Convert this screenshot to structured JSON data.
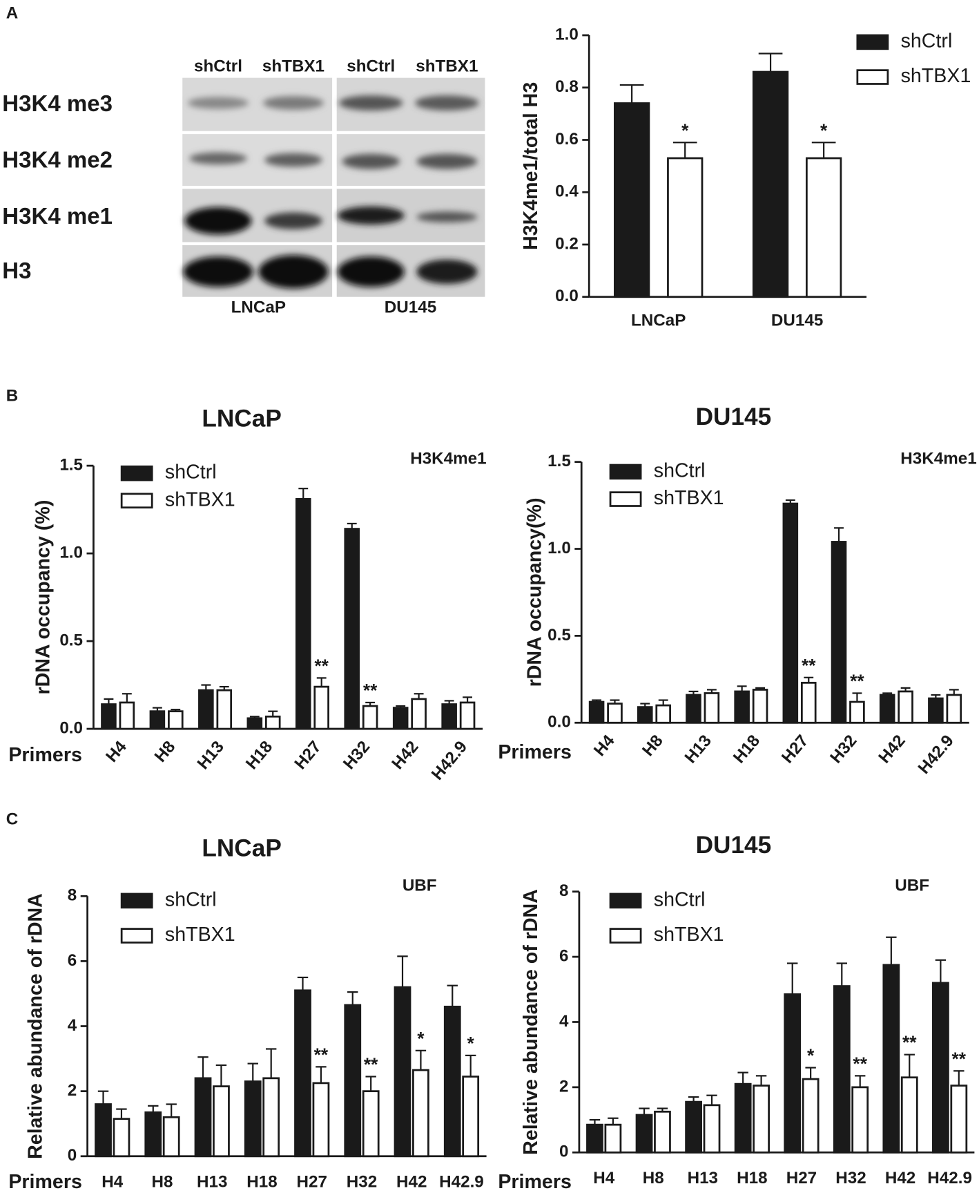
{
  "panel_labels": [
    "A",
    "B",
    "C"
  ],
  "blot": {
    "columns": [
      "shCtrl",
      "shTBX1",
      "shCtrl",
      "shTBX1"
    ],
    "rows": [
      "H3K4 me3",
      "H3K4 me2",
      "H3K4 me1",
      "H3"
    ],
    "cell_lines": [
      "LNCaP",
      "DU145"
    ]
  },
  "chart_data": [
    {
      "type": "bar",
      "ylabel": "H3K4me1/total H3",
      "categories": [
        "LNCaP",
        "DU145"
      ],
      "series": [
        {
          "name": "shCtrl",
          "color": "#1a1a1a",
          "values": [
            0.74,
            0.86
          ],
          "errors": [
            0.07,
            0.07
          ],
          "significance": [
            null,
            null
          ]
        },
        {
          "name": "shTBX1",
          "color": "#ffffff",
          "values": [
            0.53,
            0.53
          ],
          "errors": [
            0.06,
            0.06
          ],
          "significance": [
            "*",
            "*"
          ]
        }
      ],
      "ylim": [
        0,
        1.0
      ],
      "yticks": [
        {
          "value": 0,
          "label": "0.0"
        },
        0.2,
        0.4,
        0.6,
        0.8,
        {
          "value": 1.0,
          "label": "1.0"
        }
      ],
      "legend": "outside right",
      "xtick_rotation": 0
    },
    {
      "type": "bar",
      "title": "LNCaP",
      "annotation": "H3K4me1",
      "ylabel": "rDNA occupancy (%)",
      "xlabel": "Primers",
      "categories": [
        "H4",
        "H8",
        "H13",
        "H18",
        "H27",
        "H32",
        "H42",
        "H42.9"
      ],
      "series": [
        {
          "name": "shCtrl",
          "color": "#1a1a1a",
          "values": [
            0.14,
            0.1,
            0.22,
            0.06,
            1.31,
            1.14,
            0.12,
            0.14
          ],
          "errors": [
            0.03,
            0.02,
            0.03,
            0.01,
            0.06,
            0.03,
            0.01,
            0.02
          ],
          "significance": [
            null,
            null,
            null,
            null,
            null,
            null,
            null,
            null
          ]
        },
        {
          "name": "shTBX1",
          "color": "#ffffff",
          "values": [
            0.15,
            0.1,
            0.22,
            0.07,
            0.24,
            0.13,
            0.17,
            0.15
          ],
          "errors": [
            0.05,
            0.01,
            0.02,
            0.03,
            0.05,
            0.02,
            0.03,
            0.03
          ],
          "significance": [
            null,
            null,
            null,
            null,
            "**",
            "**",
            null,
            null
          ]
        }
      ],
      "ylim": [
        0,
        1.5
      ],
      "yticks": [
        {
          "value": 0,
          "label": "0.0"
        },
        0.5,
        {
          "value": 1.0,
          "label": "1.0"
        },
        1.5
      ],
      "legend": "upper left",
      "xtick_rotation": 50
    },
    {
      "type": "bar",
      "title": "DU145",
      "annotation": "H3K4me1",
      "ylabel": "rDNA occupancy(%)",
      "xlabel": "Primers",
      "categories": [
        "H4",
        "H8",
        "H13",
        "H18",
        "H27",
        "H32",
        "H42",
        "H42.9"
      ],
      "series": [
        {
          "name": "shCtrl",
          "color": "#1a1a1a",
          "values": [
            0.12,
            0.09,
            0.16,
            0.18,
            1.26,
            1.04,
            0.16,
            0.14
          ],
          "errors": [
            0.01,
            0.02,
            0.02,
            0.03,
            0.02,
            0.08,
            0.01,
            0.02
          ],
          "significance": [
            null,
            null,
            null,
            null,
            null,
            null,
            null,
            null
          ]
        },
        {
          "name": "shTBX1",
          "color": "#ffffff",
          "values": [
            0.11,
            0.1,
            0.17,
            0.19,
            0.23,
            0.12,
            0.18,
            0.16
          ],
          "errors": [
            0.02,
            0.03,
            0.02,
            0.01,
            0.03,
            0.05,
            0.02,
            0.03
          ],
          "significance": [
            null,
            null,
            null,
            null,
            "**",
            "**",
            null,
            null
          ]
        }
      ],
      "ylim": [
        0,
        1.5
      ],
      "yticks": [
        {
          "value": 0,
          "label": "0.0"
        },
        0.5,
        {
          "value": 1.0,
          "label": "1.0"
        },
        1.5
      ],
      "legend": "upper left",
      "xtick_rotation": 50
    },
    {
      "type": "bar",
      "title": "LNCaP",
      "annotation": "UBF",
      "ylabel": "Relative abundance of rDNA",
      "xlabel": "Primers",
      "categories": [
        "H4",
        "H8",
        "H13",
        "H18",
        "H27",
        "H32",
        "H42",
        "H42.9"
      ],
      "series": [
        {
          "name": "shCtrl",
          "color": "#1a1a1a",
          "values": [
            1.6,
            1.35,
            2.4,
            2.3,
            5.1,
            4.65,
            5.2,
            4.6
          ],
          "errors": [
            0.4,
            0.2,
            0.65,
            0.55,
            0.4,
            0.4,
            0.95,
            0.65
          ],
          "significance": [
            null,
            null,
            null,
            null,
            null,
            null,
            null,
            null
          ]
        },
        {
          "name": "shTBX1",
          "color": "#ffffff",
          "values": [
            1.15,
            1.2,
            2.15,
            2.4,
            2.25,
            2.0,
            2.65,
            2.45
          ],
          "errors": [
            0.3,
            0.4,
            0.65,
            0.9,
            0.5,
            0.45,
            0.6,
            0.65
          ],
          "significance": [
            null,
            null,
            null,
            null,
            "**",
            "**",
            "*",
            "*"
          ]
        }
      ],
      "ylim": [
        0,
        8
      ],
      "yticks": [
        0,
        2,
        4,
        6,
        8
      ],
      "legend": "upper left",
      "xtick_rotation": 0
    },
    {
      "type": "bar",
      "title": "DU145",
      "annotation": "UBF",
      "ylabel": "Relative abundance of rDNA",
      "xlabel": "Primers",
      "categories": [
        "H4",
        "H8",
        "H13",
        "H18",
        "H27",
        "H32",
        "H42",
        "H42.9"
      ],
      "series": [
        {
          "name": "shCtrl",
          "color": "#1a1a1a",
          "values": [
            0.85,
            1.15,
            1.55,
            2.1,
            4.85,
            5.1,
            5.75,
            5.2
          ],
          "errors": [
            0.15,
            0.2,
            0.15,
            0.35,
            0.95,
            0.7,
            0.85,
            0.7
          ],
          "significance": [
            null,
            null,
            null,
            null,
            null,
            null,
            null,
            null
          ]
        },
        {
          "name": "shTBX1",
          "color": "#ffffff",
          "values": [
            0.85,
            1.25,
            1.45,
            2.05,
            2.25,
            2.0,
            2.3,
            2.05
          ],
          "errors": [
            0.2,
            0.1,
            0.3,
            0.3,
            0.35,
            0.35,
            0.7,
            0.45
          ],
          "significance": [
            null,
            null,
            null,
            null,
            "*",
            "**",
            "**",
            "**"
          ]
        }
      ],
      "ylim": [
        0,
        8
      ],
      "yticks": [
        0,
        2,
        4,
        6,
        8
      ],
      "legend": "upper left",
      "xtick_rotation": 0
    }
  ]
}
